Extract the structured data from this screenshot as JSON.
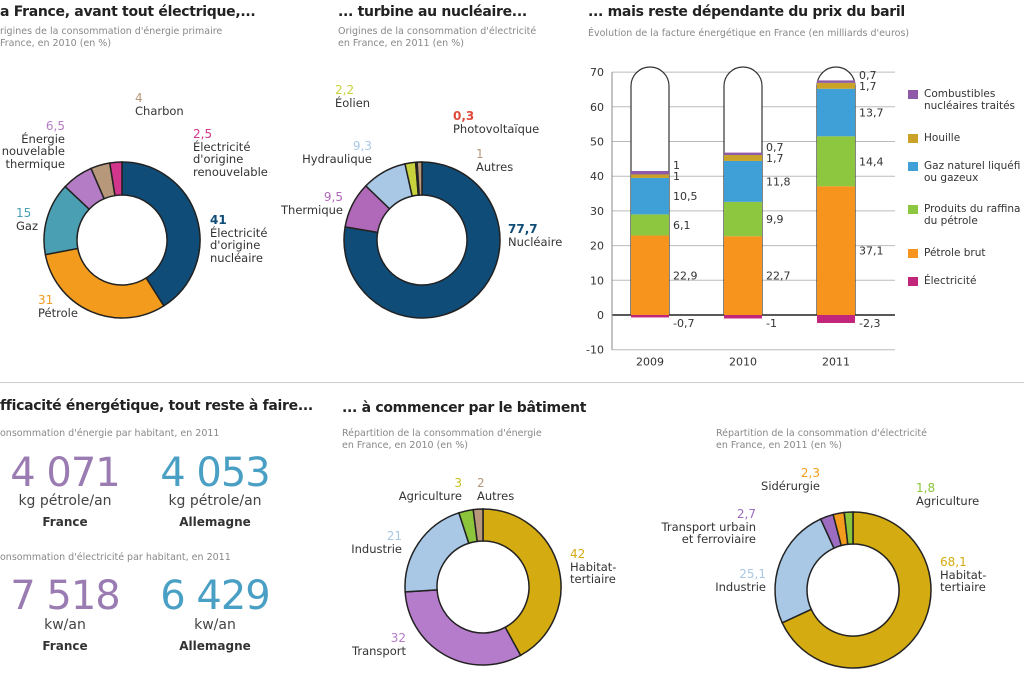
{
  "chart_data": [
    {
      "type": "pie",
      "title": "a France, avant tout électrique,...",
      "subtitle": [
        "rigines de la consommation d'énergie primaire",
        "France, en 2010 (en %)"
      ],
      "slices": [
        {
          "label": [
            "Électricité",
            "d'origine",
            "nucléaire"
          ],
          "value": 41,
          "display": "41",
          "color": "#0f4c78"
        },
        {
          "label": [
            "Pétrole"
          ],
          "value": 31,
          "display": "31",
          "color": "#f39b1c"
        },
        {
          "label": [
            "Gaz"
          ],
          "value": 15,
          "display": "15",
          "color": "#4aa0b2"
        },
        {
          "label": [
            "Énergie",
            "nouvelable",
            "thermique"
          ],
          "value": 6.5,
          "display": "6,5",
          "color": "#b47cc4"
        },
        {
          "label": [
            "Charbon"
          ],
          "value": 4,
          "display": "4",
          "color": "#b8987a"
        },
        {
          "label": [
            "Électricité",
            "d'origine",
            "renouvelable"
          ],
          "value": 2.5,
          "display": "2,5",
          "color": "#d2358c"
        }
      ]
    },
    {
      "type": "pie",
      "title": "... turbine au nucléaire...",
      "subtitle": [
        "Origines de la consommation d'électricité",
        "en France, en 2011 (en %)"
      ],
      "slices": [
        {
          "label": [
            "Nucléaire"
          ],
          "value": 77.7,
          "display": "77,7",
          "color": "#0f4c78"
        },
        {
          "label": [
            "Thermique"
          ],
          "value": 9.5,
          "display": "9,5",
          "color": "#b068b8"
        },
        {
          "label": [
            "Hydraulique"
          ],
          "value": 9.3,
          "display": "9,3",
          "color": "#a8c8e6"
        },
        {
          "label": [
            "Éolien"
          ],
          "value": 2.2,
          "display": "2,2",
          "color": "#c8d23c"
        },
        {
          "label": [
            "Photovoltaïque"
          ],
          "value": 0.3,
          "display": "0,3",
          "color": "#e04a3a"
        },
        {
          "label": [
            "Autres"
          ],
          "value": 1,
          "display": "1",
          "color": "#b8987a"
        }
      ]
    },
    {
      "type": "bar",
      "stacked": true,
      "title": "... mais reste dépendante du prix du baril",
      "subtitle": "Évolution de la facture énergétique en France (en milliards d'euros)",
      "categories": [
        "2009",
        "2010",
        "2011"
      ],
      "ylim": [
        -10,
        70
      ],
      "yticks": [
        70,
        60,
        50,
        40,
        30,
        20,
        10,
        0,
        -10
      ],
      "grid": true,
      "legend": "right",
      "series": [
        {
          "name": "Pétrole brut",
          "values": [
            22.9,
            22.7,
            37.1
          ],
          "labels": [
            "22,9",
            "22,7",
            "37,1"
          ],
          "color": "#f7941d"
        },
        {
          "name": "Produits du raffinage du pétrole",
          "legend_lines": [
            "Produits du raffina",
            "du pétrole"
          ],
          "values": [
            6.1,
            9.9,
            14.4
          ],
          "labels": [
            "6,1",
            "9,9",
            "14,4"
          ],
          "color": "#8dc63f"
        },
        {
          "name": "Gaz naturel liquéfié ou gazeux",
          "legend_lines": [
            "Gaz naturel liquéfi",
            "ou gazeux"
          ],
          "values": [
            10.5,
            11.8,
            13.7
          ],
          "labels": [
            "10,5",
            "11,8",
            "13,7"
          ],
          "color": "#3fa0d8"
        },
        {
          "name": "Houille",
          "legend_lines": [
            "Houille"
          ],
          "values": [
            1,
            1.7,
            1.7
          ],
          "labels": [
            "1",
            "1,7",
            "1,7"
          ],
          "color": "#c9a227"
        },
        {
          "name": "Combustibles nucléaires traités",
          "legend_lines": [
            "Combustibles",
            "nucléaires traités"
          ],
          "values": [
            1,
            0.7,
            0.7
          ],
          "labels": [
            "1",
            "0,7",
            "0,7"
          ],
          "color": "#8e5aa8"
        },
        {
          "name": "Électricité",
          "legend_lines": [
            "Électricité"
          ],
          "values": [
            -0.7,
            -1,
            -2.3
          ],
          "labels": [
            "-0,7",
            "-1",
            "-2,3"
          ],
          "color": "#c2267a"
        }
      ]
    },
    {
      "type": "pie",
      "title": "... à commencer par le bâtiment",
      "subtitle": [
        "Répartition de la consommation d'énergie",
        "en France, en 2010 (en %)"
      ],
      "slices": [
        {
          "label": [
            "Habitat-",
            "tertiaire"
          ],
          "value": 42,
          "display": "42",
          "color": "#d4ab10"
        },
        {
          "label": [
            "Transport"
          ],
          "value": 32,
          "display": "32",
          "color": "#b67ccc"
        },
        {
          "label": [
            "Industrie"
          ],
          "value": 21,
          "display": "21",
          "color": "#a8c8e6"
        },
        {
          "label": [
            "Agriculture"
          ],
          "value": 3,
          "display": "3",
          "color": "#8cc43c"
        },
        {
          "label": [
            "Autres"
          ],
          "value": 2,
          "display": "2",
          "color": "#b8987a"
        }
      ]
    },
    {
      "type": "pie",
      "title": "",
      "subtitle": [
        "Répartition de la consommation d'électricité",
        "en France, en 2011 (en %)"
      ],
      "slices": [
        {
          "label": [
            "Habitat-",
            "tertiaire"
          ],
          "value": 68.1,
          "display": "68,1",
          "color": "#d4ab10"
        },
        {
          "label": [
            "Industrie"
          ],
          "value": 25.1,
          "display": "25,1",
          "color": "#a8c8e6"
        },
        {
          "label": [
            "Transport urbain",
            "et ferroviaire"
          ],
          "value": 2.7,
          "display": "2,7",
          "color": "#9b6cc0"
        },
        {
          "label": [
            "Sidérurgie"
          ],
          "value": 2.3,
          "display": "2,3",
          "color": "#f39b1c"
        },
        {
          "label": [
            "Agriculture"
          ],
          "value": 1.8,
          "display": "1,8",
          "color": "#8cc43c"
        }
      ]
    }
  ],
  "efficiency": {
    "title": "fficacité énergétique, tout reste à faire...",
    "energy_sub": "onsommation d'énergie par habitant, en 2011",
    "elec_sub": "onsommation d'électricité par habitant, en 2011",
    "energy": [
      {
        "value": "4 071",
        "unit": "kg pétrole/an",
        "country": "France",
        "color": "#9a7bb2"
      },
      {
        "value": "4 053",
        "unit": "kg pétrole/an",
        "country": "Allemagne",
        "color": "#4aa0c4"
      }
    ],
    "elec": [
      {
        "value": "7 518",
        "unit": "kw/an",
        "country": "France",
        "color": "#9a7bb2"
      },
      {
        "value": "6 429",
        "unit": "kw/an",
        "country": "Allemagne",
        "color": "#4aa0c4"
      }
    ]
  }
}
